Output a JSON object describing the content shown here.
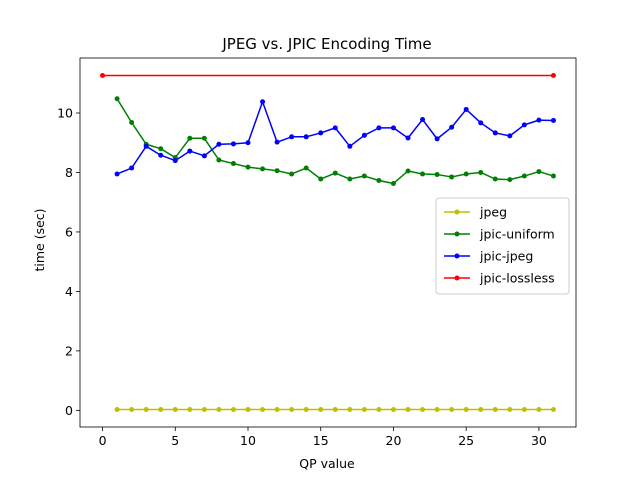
{
  "chart_data": {
    "type": "line",
    "title": "JPEG vs. JPIC Encoding Time",
    "xlabel": "QP value",
    "ylabel": "time (sec)",
    "xlim": [
      -1.55,
      32.55
    ],
    "ylim": [
      -0.56,
      11.85
    ],
    "xticks": [
      0,
      5,
      10,
      15,
      20,
      25,
      30
    ],
    "yticks": [
      0,
      2,
      4,
      6,
      8,
      10
    ],
    "grid": false,
    "legend_position": "center-right",
    "series": [
      {
        "name": "jpeg",
        "color": "#bfbf00",
        "x": [
          1,
          2,
          3,
          4,
          5,
          6,
          7,
          8,
          9,
          10,
          11,
          12,
          13,
          14,
          15,
          16,
          17,
          18,
          19,
          20,
          21,
          22,
          23,
          24,
          25,
          26,
          27,
          28,
          29,
          30,
          31
        ],
        "y": [
          0.03,
          0.03,
          0.03,
          0.03,
          0.03,
          0.03,
          0.03,
          0.03,
          0.03,
          0.03,
          0.03,
          0.03,
          0.03,
          0.03,
          0.03,
          0.03,
          0.03,
          0.03,
          0.03,
          0.03,
          0.03,
          0.03,
          0.03,
          0.03,
          0.03,
          0.03,
          0.03,
          0.03,
          0.03,
          0.03,
          0.03
        ]
      },
      {
        "name": "jpic-uniform",
        "color": "#008000",
        "x": [
          1,
          2,
          3,
          4,
          5,
          6,
          7,
          8,
          9,
          10,
          11,
          12,
          13,
          14,
          15,
          16,
          17,
          18,
          19,
          20,
          21,
          22,
          23,
          24,
          25,
          26,
          27,
          28,
          29,
          30,
          31
        ],
        "y": [
          10.48,
          9.68,
          8.95,
          8.8,
          8.5,
          9.15,
          9.15,
          8.42,
          8.3,
          8.18,
          8.12,
          8.06,
          7.95,
          8.15,
          7.78,
          7.98,
          7.78,
          7.88,
          7.73,
          7.63,
          8.05,
          7.95,
          7.93,
          7.85,
          7.95,
          8.0,
          7.78,
          7.76,
          7.88,
          8.03,
          7.88
        ]
      },
      {
        "name": "jpic-jpeg",
        "color": "#0000ff",
        "x": [
          1,
          2,
          3,
          4,
          5,
          6,
          7,
          8,
          9,
          10,
          11,
          12,
          13,
          14,
          15,
          16,
          17,
          18,
          19,
          20,
          21,
          22,
          23,
          24,
          25,
          26,
          27,
          28,
          29,
          30,
          31
        ],
        "y": [
          7.95,
          8.15,
          8.88,
          8.58,
          8.4,
          8.72,
          8.56,
          8.95,
          8.96,
          9.0,
          10.38,
          9.02,
          9.2,
          9.2,
          9.33,
          9.5,
          8.88,
          9.25,
          9.5,
          9.5,
          9.16,
          9.78,
          9.13,
          9.52,
          10.12,
          9.67,
          9.33,
          9.23,
          9.6,
          9.76,
          9.75
        ]
      },
      {
        "name": "jpic-lossless",
        "color": "#ff0000",
        "x": [
          0,
          31
        ],
        "y": [
          11.26,
          11.26
        ]
      }
    ]
  }
}
